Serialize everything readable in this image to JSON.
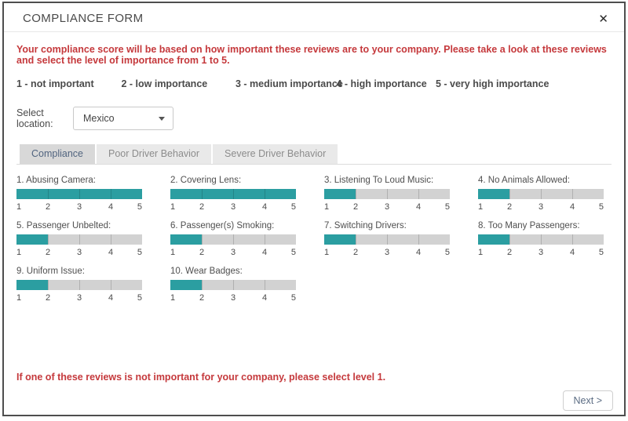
{
  "dialog": {
    "title": "COMPLIANCE FORM",
    "close_icon": "✕"
  },
  "intro": "Your compliance score will be based on how important these reviews are to your company. Please take a look at these reviews and select the level of importance from 1 to 5.",
  "legend": [
    "1 - not important",
    "2 - low importance",
    "3 - medium importance",
    "4 - high importance",
    "5 - very high importance"
  ],
  "location": {
    "label": "Select location:",
    "selected": "Mexico"
  },
  "tabs": [
    {
      "label": "Compliance",
      "active": true
    },
    {
      "label": "Poor Driver Behavior",
      "active": false
    },
    {
      "label": "Severe Driver Behavior",
      "active": false
    }
  ],
  "sliders": [
    {
      "label": "1. Abusing Camera:",
      "value": 5
    },
    {
      "label": "2. Covering Lens:",
      "value": 5
    },
    {
      "label": "3. Listening To Loud Music:",
      "value": 2
    },
    {
      "label": "4. No Animals Allowed:",
      "value": 2
    },
    {
      "label": "5. Passenger Unbelted:",
      "value": 2
    },
    {
      "label": "6. Passenger(s) Smoking:",
      "value": 2
    },
    {
      "label": "7. Switching Drivers:",
      "value": 2
    },
    {
      "label": "8. Too Many Passengers:",
      "value": 2
    },
    {
      "label": "9. Uniform Issue:",
      "value": 2
    },
    {
      "label": "10. Wear Badges:",
      "value": 2
    }
  ],
  "slider_scale": [
    "1",
    "2",
    "3",
    "4",
    "5"
  ],
  "note": "If one of these reviews is not important for your company, please select level 1.",
  "next_button": "Next >",
  "colors": {
    "accent_teal": "#2b9ea1",
    "track_gray": "#d2d2d2",
    "alert_red": "#c5393c"
  }
}
